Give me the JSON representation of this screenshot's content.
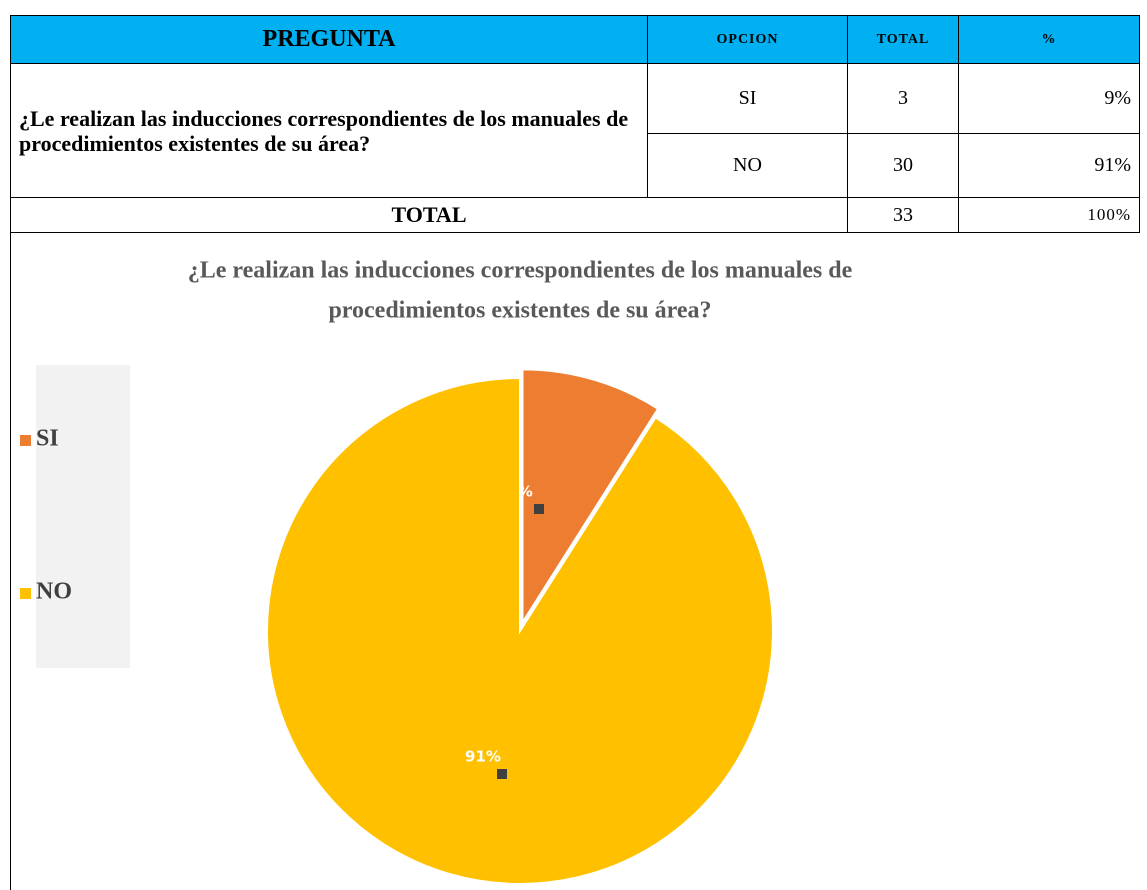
{
  "table": {
    "header": [
      "PREGUNTA",
      "OPCION",
      "TOTAL",
      "%"
    ],
    "question": "¿Le realizan las inducciones correspondientes de los manuales de procedimientos existentes de su área?",
    "rows": [
      [
        "SI",
        "3",
        "9%"
      ],
      [
        "NO",
        "30",
        "91%"
      ]
    ],
    "total": [
      "TOTAL",
      "33",
      "100%"
    ]
  },
  "chart_data": {
    "type": "pie",
    "title": [
      "¿Le realizan las inducciones correspondientes de los manuales de",
      "procedimientos existentes de su área?"
    ],
    "categories": [
      "SI",
      "NO"
    ],
    "values": [
      9,
      91
    ],
    "value_labels": [
      "9%",
      "91%"
    ],
    "colors": [
      "#ed7d31",
      "#ffc000"
    ],
    "legend": "left"
  }
}
